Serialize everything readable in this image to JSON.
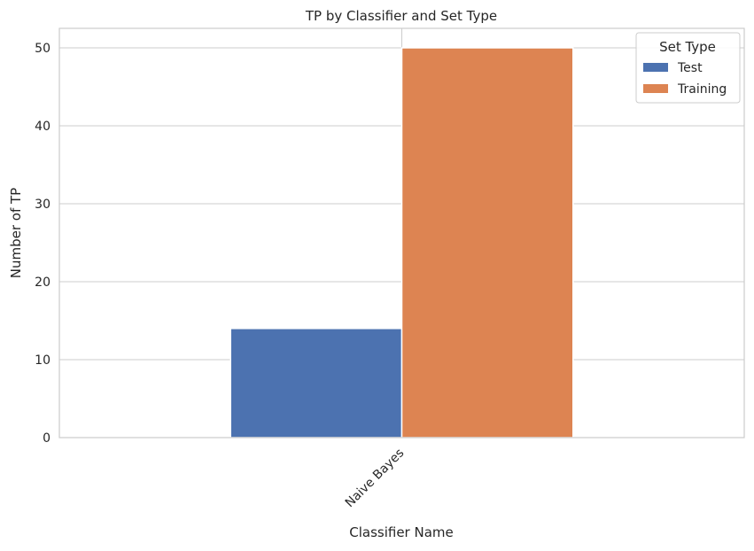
{
  "chart_data": {
    "type": "bar",
    "title": "TP by Classifier and Set Type",
    "xlabel": "Classifier Name",
    "ylabel": "Number of TP",
    "categories": [
      "Naive Bayes"
    ],
    "series": [
      {
        "name": "Test",
        "values": [
          14
        ],
        "color": "#4c72b0"
      },
      {
        "name": "Training",
        "values": [
          50
        ],
        "color": "#dd8452"
      }
    ],
    "ylim": [
      0,
      52.5
    ],
    "yticks": [
      "0",
      "10",
      "20",
      "30",
      "40",
      "50"
    ],
    "grid": true,
    "legend": {
      "title": "Set Type",
      "position": "top-right"
    }
  }
}
